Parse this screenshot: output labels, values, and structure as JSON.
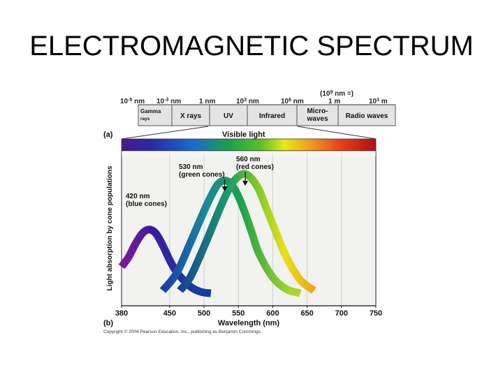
{
  "slide_title": "ELECTROMAGNETIC SPECTRUM",
  "spectrum_bar": {
    "scale_labels": [
      "10",
      "-5",
      " nm",
      "10",
      "-3",
      " nm",
      "1 nm",
      "10",
      "3",
      " nm",
      "10",
      "6",
      " nm",
      "1 m",
      "10",
      "3",
      " m"
    ],
    "scale_note": [
      "(10",
      "9",
      " nm =)"
    ],
    "bands": [
      {
        "lines": [
          "Gamma",
          "rays"
        ]
      },
      {
        "lines": [
          "X rays"
        ]
      },
      {
        "lines": [
          "UV"
        ]
      },
      {
        "lines": [
          "Infrared"
        ]
      },
      {
        "lines": [
          "Micro-",
          "waves"
        ]
      },
      {
        "lines": [
          "Radio waves"
        ]
      }
    ]
  },
  "panel_a_label": "(a)",
  "panel_b_label": "(b)",
  "visible_light_label": "Visible light",
  "copyright": "Copyright © 2004 Pearson Education, Inc., publishing as Benjamin Cummings.",
  "chart_data": {
    "type": "line",
    "title": "",
    "xlabel": "Wavelength (nm)",
    "ylabel": "Light absorption by cone populations",
    "xlim": [
      380,
      750
    ],
    "xticks": [
      380,
      450,
      500,
      550,
      600,
      650,
      700,
      750
    ],
    "grid": true,
    "series": [
      {
        "x": [
          380,
          390,
          400,
          410,
          420,
          430,
          440,
          450,
          460,
          470,
          480,
          490,
          500,
          510
        ],
        "y": [
          0.2,
          0.27,
          0.37,
          0.45,
          0.48,
          0.45,
          0.36,
          0.25,
          0.16,
          0.1,
          0.05,
          0.02,
          0.005,
          0
        ]
      },
      {
        "x": [
          440,
          460,
          480,
          500,
          510,
          520,
          530,
          540,
          550,
          560,
          570,
          580,
          600,
          620,
          640
        ],
        "y": [
          0.02,
          0.15,
          0.38,
          0.62,
          0.73,
          0.82,
          0.85,
          0.82,
          0.73,
          0.6,
          0.45,
          0.3,
          0.12,
          0.03,
          0
        ]
      },
      {
        "x": [
          465,
          480,
          500,
          520,
          530,
          540,
          550,
          560,
          570,
          580,
          590,
          600,
          620,
          640,
          660
        ],
        "y": [
          0.02,
          0.12,
          0.35,
          0.6,
          0.72,
          0.82,
          0.88,
          0.9,
          0.86,
          0.78,
          0.65,
          0.52,
          0.27,
          0.1,
          0.02
        ]
      }
    ],
    "annotations": [
      {
        "x": 420,
        "lines": [
          "420 nm",
          "(blue cones)"
        ]
      },
      {
        "x": 530,
        "lines": [
          "530 nm",
          "(green cones)"
        ]
      },
      {
        "x": 560,
        "lines": [
          "560 nm",
          "(red cones)"
        ]
      }
    ]
  }
}
